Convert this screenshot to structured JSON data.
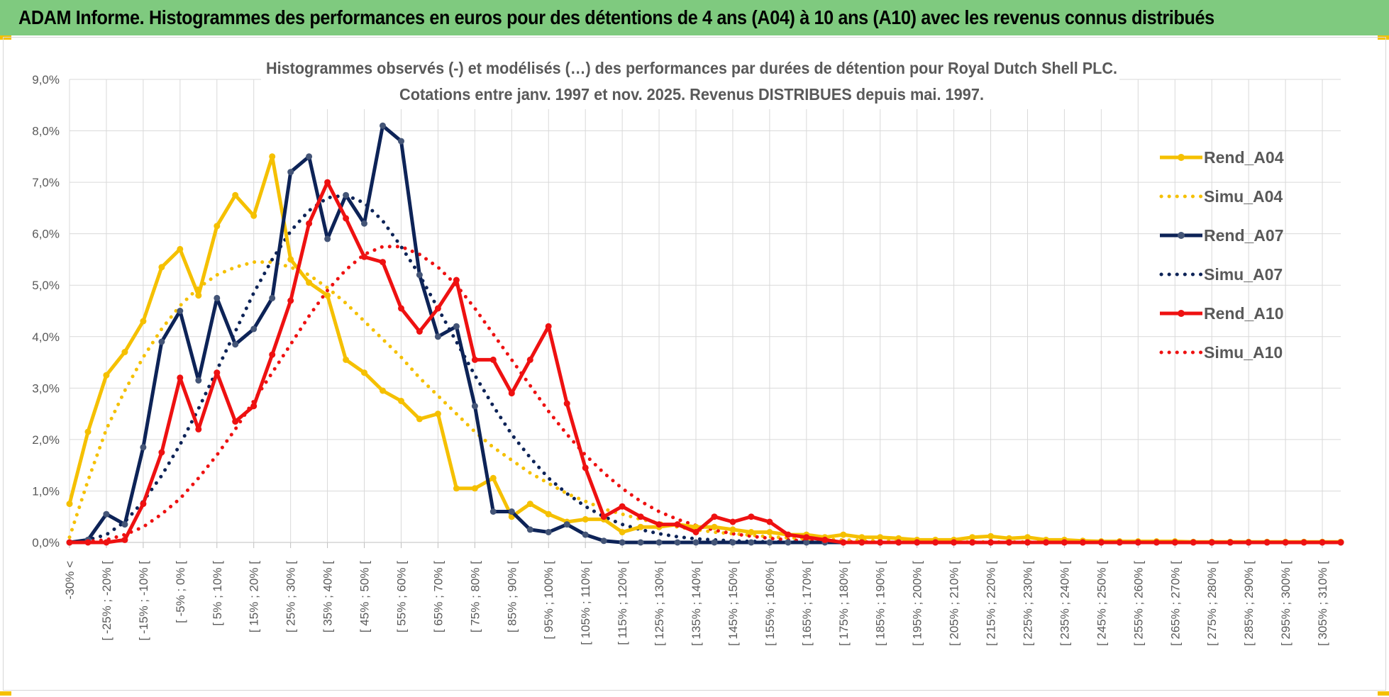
{
  "header": {
    "title": "ADAM Informe. Histogrammes des performances en euros pour des détentions de 4 ans (A04) à 10 ans (A10) avec les revenus connus distribués"
  },
  "chart_data": {
    "type": "line",
    "title": "Histogrammes observés (-) et modélisés (…) des performances par durées de détention pour Royal Dutch Shell PLC.",
    "subtitle": "Cotations entre janv. 1997 et nov. 2025. Revenus DISTRIBUES depuis mai. 1997.",
    "xlabel": "",
    "ylabel": "",
    "ylim": [
      0,
      9
    ],
    "y_ticks": [
      "0,0%",
      "1,0%",
      "2,0%",
      "3,0%",
      "4,0%",
      "5,0%",
      "6,0%",
      "7,0%",
      "8,0%",
      "9,0%"
    ],
    "grid": true,
    "legend_position": "right",
    "x_tick_labels": [
      "-30% <",
      "[ -25% ; -20% [",
      "[ -15% ; -10% [",
      "[ -5% ; 0% [",
      "[ 5% ; 10% [",
      "[ 15% ; 20% [",
      "[ 25% ; 30% [",
      "[ 35% ; 40% [",
      "[ 45% ; 50% [",
      "[ 55% ; 60% [",
      "[ 65% ; 70% [",
      "[ 75% ; 80% [",
      "[ 85% ; 90% [",
      "[ 95% ; 100% [",
      "[ 105% ; 110% [",
      "[ 115% ; 120% [",
      "[ 125% ; 130% [",
      "[ 135% ; 140% [",
      "[ 145% ; 150% [",
      "[ 155% ; 160% [",
      "[ 165% ; 170% [",
      "[ 175% ; 180% [",
      "[ 185% ; 190% [",
      "[ 195% ; 200% [",
      "[ 205% ; 210% [",
      "[ 215% ; 220% [",
      "[ 225% ; 230% [",
      "[ 235% ; 240% [",
      "[ 245% ; 250% [",
      "[ 255% ; 260% [",
      "[ 265% ; 270% [",
      "[ 275% ; 280% [",
      "[ 285% ; 290% [",
      "[ 295% ; 300% [",
      "[ 305% ; 310% ["
    ],
    "series": [
      {
        "name": "Rend_A04",
        "style": "solid",
        "color": "#f5c000",
        "values": [
          0.75,
          2.15,
          3.25,
          3.7,
          4.3,
          5.35,
          5.7,
          4.8,
          6.15,
          6.75,
          6.35,
          7.5,
          5.5,
          5.05,
          4.8,
          3.55,
          3.3,
          2.95,
          2.75,
          2.4,
          2.5,
          1.05,
          1.05,
          1.25,
          0.5,
          0.75,
          0.55,
          0.4,
          0.45,
          0.45,
          0.2,
          0.3,
          0.3,
          0.35,
          0.3,
          0.3,
          0.25,
          0.2,
          0.2,
          0.15,
          0.15,
          0.1,
          0.15,
          0.1,
          0.1,
          0.08,
          0.05,
          0.05,
          0.05,
          0.1,
          0.12,
          0.08,
          0.1,
          0.05,
          0.05,
          0.03,
          0.02,
          0.02,
          0.02,
          0.02,
          0.02,
          0.01,
          0.01,
          0.01,
          0.01,
          0.01,
          0.01,
          0.01,
          0.01,
          0.01
        ]
      },
      {
        "name": "Simu_A04",
        "style": "dotted",
        "color": "#f5c000",
        "values": [
          0.1,
          1.2,
          2.2,
          2.95,
          3.6,
          4.15,
          4.6,
          4.95,
          5.2,
          5.35,
          5.45,
          5.45,
          5.35,
          5.2,
          4.95,
          4.65,
          4.3,
          3.95,
          3.6,
          3.2,
          2.85,
          2.5,
          2.15,
          1.85,
          1.6,
          1.35,
          1.15,
          0.95,
          0.8,
          0.65,
          0.55,
          0.45,
          0.38,
          0.3,
          0.25,
          0.2,
          0.17,
          0.14,
          0.11,
          0.09,
          0.07,
          0.06,
          0.05,
          0.04,
          0.03,
          0.03,
          0.02,
          0.02,
          0.02,
          0.01,
          0.01,
          0.01,
          0.01,
          0.01,
          0.01,
          0.0,
          0.0,
          0.0,
          0.0,
          0.0,
          0.0,
          0.0,
          0.0,
          0.0,
          0.0,
          0.0,
          0.0,
          0.0,
          0.0,
          0.0
        ]
      },
      {
        "name": "Rend_A07",
        "style": "solid",
        "color": "#0d2357",
        "values": [
          0.0,
          0.05,
          0.55,
          0.35,
          1.85,
          3.9,
          4.5,
          3.15,
          4.75,
          3.85,
          4.15,
          4.75,
          7.2,
          7.5,
          5.9,
          6.75,
          6.2,
          8.1,
          7.8,
          5.2,
          4.0,
          4.2,
          2.65,
          0.6,
          0.6,
          0.25,
          0.2,
          0.35,
          0.15,
          0.03,
          0.0,
          0.0,
          0.0,
          0.0,
          0.0,
          0.0,
          0.0,
          0.0,
          0.0,
          0.0,
          0.0,
          0.0,
          0.0,
          0.0,
          0.0,
          0.0,
          0.0,
          0.0,
          0.0,
          0.0,
          0.0,
          0.0,
          0.0,
          0.0,
          0.0,
          0.0,
          0.0,
          0.0,
          0.0,
          0.0,
          0.0,
          0.0,
          0.0,
          0.0,
          0.0,
          0.0,
          0.0,
          0.0,
          0.0,
          0.0
        ]
      },
      {
        "name": "Simu_A07",
        "style": "dotted",
        "color": "#0d2357",
        "values": [
          0.0,
          0.05,
          0.15,
          0.4,
          0.8,
          1.3,
          1.9,
          2.6,
          3.35,
          4.1,
          4.85,
          5.5,
          6.05,
          6.45,
          6.7,
          6.75,
          6.6,
          6.25,
          5.75,
          5.2,
          4.55,
          3.9,
          3.25,
          2.65,
          2.1,
          1.65,
          1.25,
          0.95,
          0.7,
          0.5,
          0.35,
          0.25,
          0.17,
          0.11,
          0.07,
          0.05,
          0.03,
          0.02,
          0.01,
          0.01,
          0.0,
          0.0,
          0.0,
          0.0,
          0.0,
          0.0,
          0.0,
          0.0,
          0.0,
          0.0,
          0.0,
          0.0,
          0.0,
          0.0,
          0.0,
          0.0,
          0.0,
          0.0,
          0.0,
          0.0,
          0.0,
          0.0,
          0.0,
          0.0,
          0.0,
          0.0,
          0.0,
          0.0,
          0.0,
          0.0
        ]
      },
      {
        "name": "Rend_A10",
        "style": "solid",
        "color": "#ee1111",
        "values": [
          0.0,
          0.0,
          0.0,
          0.05,
          0.75,
          1.75,
          3.2,
          2.2,
          3.3,
          2.35,
          2.65,
          3.65,
          4.7,
          6.2,
          7.0,
          6.3,
          5.55,
          5.45,
          4.55,
          4.1,
          4.55,
          5.1,
          3.55,
          3.55,
          2.9,
          3.55,
          4.2,
          2.7,
          1.45,
          0.5,
          0.7,
          0.5,
          0.35,
          0.35,
          0.2,
          0.5,
          0.4,
          0.5,
          0.4,
          0.15,
          0.1,
          0.05,
          0.0,
          0.0,
          0.0,
          0.0,
          0.0,
          0.0,
          0.0,
          0.0,
          0.0,
          0.0,
          0.0,
          0.0,
          0.0,
          0.0,
          0.0,
          0.0,
          0.0,
          0.0,
          0.0,
          0.0,
          0.0,
          0.0,
          0.0,
          0.0,
          0.0,
          0.0,
          0.0,
          0.0
        ]
      },
      {
        "name": "Simu_A10",
        "style": "dotted",
        "color": "#ee1111",
        "values": [
          0.0,
          0.02,
          0.05,
          0.15,
          0.3,
          0.55,
          0.85,
          1.25,
          1.7,
          2.2,
          2.75,
          3.3,
          3.85,
          4.4,
          4.9,
          5.3,
          5.6,
          5.75,
          5.75,
          5.6,
          5.35,
          5.0,
          4.55,
          4.05,
          3.55,
          3.05,
          2.55,
          2.1,
          1.7,
          1.35,
          1.05,
          0.8,
          0.6,
          0.45,
          0.33,
          0.24,
          0.17,
          0.12,
          0.08,
          0.05,
          0.03,
          0.02,
          0.01,
          0.01,
          0.0,
          0.0,
          0.0,
          0.0,
          0.0,
          0.0,
          0.0,
          0.0,
          0.0,
          0.0,
          0.0,
          0.0,
          0.0,
          0.0,
          0.0,
          0.0,
          0.0,
          0.0,
          0.0,
          0.0,
          0.0,
          0.0,
          0.0,
          0.0,
          0.0,
          0.0
        ]
      }
    ]
  }
}
